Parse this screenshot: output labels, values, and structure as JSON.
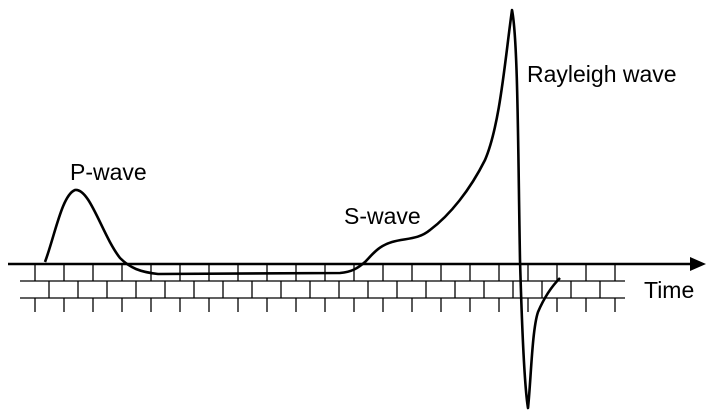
{
  "labels": {
    "p_wave": "P-wave",
    "s_wave": "S-wave",
    "rayleigh_wave": "Rayleigh wave",
    "time_axis": "Time"
  }
}
